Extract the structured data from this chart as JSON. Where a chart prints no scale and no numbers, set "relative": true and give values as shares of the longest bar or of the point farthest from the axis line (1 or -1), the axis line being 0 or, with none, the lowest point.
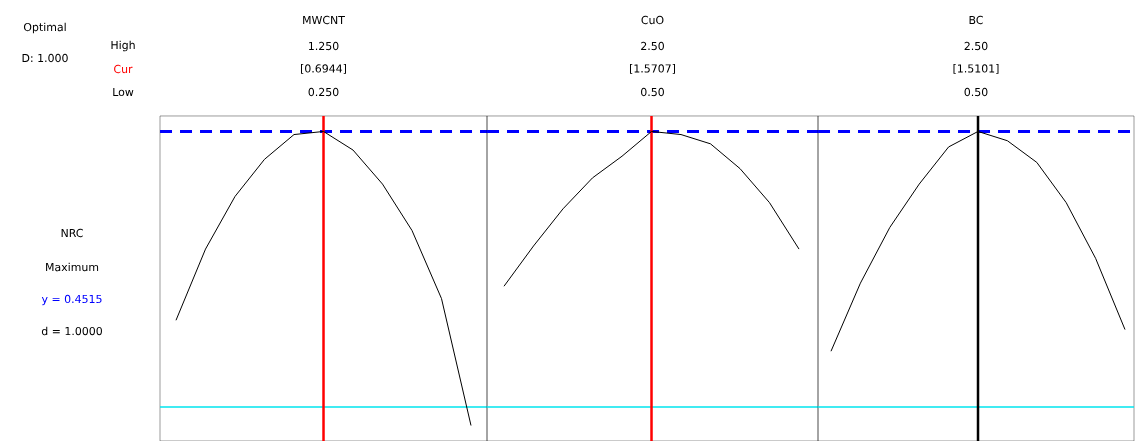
{
  "chart_data": [
    {
      "type": "line",
      "title": "MWCNT",
      "relative": true,
      "tick_labels": false,
      "color": "#000000",
      "categories": [
        null,
        null,
        null,
        null,
        null,
        null,
        null,
        null,
        null,
        null,
        null
      ],
      "values": [
        0.39,
        0.62,
        0.79,
        0.91,
        0.99,
        1.0,
        0.94,
        0.83,
        0.68,
        0.46,
        0.05
      ],
      "ref_lines": [
        {
          "axis": "y",
          "value": 1,
          "color": "#0000ff",
          "line_style": "dashed"
        },
        {
          "axis": "y",
          "value": 0.11,
          "color": "#00e5ee"
        }
      ],
      "annotations": [
        "1.250",
        "[0.6944]",
        "0.250",
        "Optimal",
        "D: 1.000",
        "High",
        "Cur",
        "Low",
        "NRC",
        "Maximum",
        "y = 0.4515",
        "d = 1.0000"
      ]
    },
    {
      "type": "line",
      "title": "CuO",
      "relative": true,
      "tick_labels": false,
      "color": "#000000",
      "categories": [
        null,
        null,
        null,
        null,
        null,
        null,
        null,
        null,
        null,
        null,
        null
      ],
      "values": [
        0.5,
        0.63,
        0.75,
        0.85,
        0.92,
        1.0,
        0.99,
        0.96,
        0.88,
        0.77,
        0.62
      ],
      "ref_lines": [
        {
          "axis": "y",
          "value": 1,
          "color": "#0000ff",
          "line_style": "dashed"
        },
        {
          "axis": "y",
          "value": 0.11,
          "color": "#00e5ee"
        }
      ],
      "annotations": [
        "2.50",
        "[1.5707]",
        "0.50"
      ]
    },
    {
      "type": "line",
      "title": "BC",
      "relative": true,
      "tick_labels": false,
      "color": "#000000",
      "categories": [
        null,
        null,
        null,
        null,
        null,
        null,
        null,
        null,
        null,
        null,
        null
      ],
      "values": [
        0.29,
        0.51,
        0.69,
        0.83,
        0.95,
        1.0,
        0.97,
        0.9,
        0.77,
        0.59,
        0.36
      ],
      "ref_lines": [
        {
          "axis": "y",
          "value": 1,
          "color": "#0000ff",
          "line_style": "dashed"
        },
        {
          "axis": "y",
          "value": 0.11,
          "color": "#00e5ee"
        }
      ],
      "annotations": [
        "2.50",
        "[1.5101]",
        "0.50"
      ]
    }
  ]
}
